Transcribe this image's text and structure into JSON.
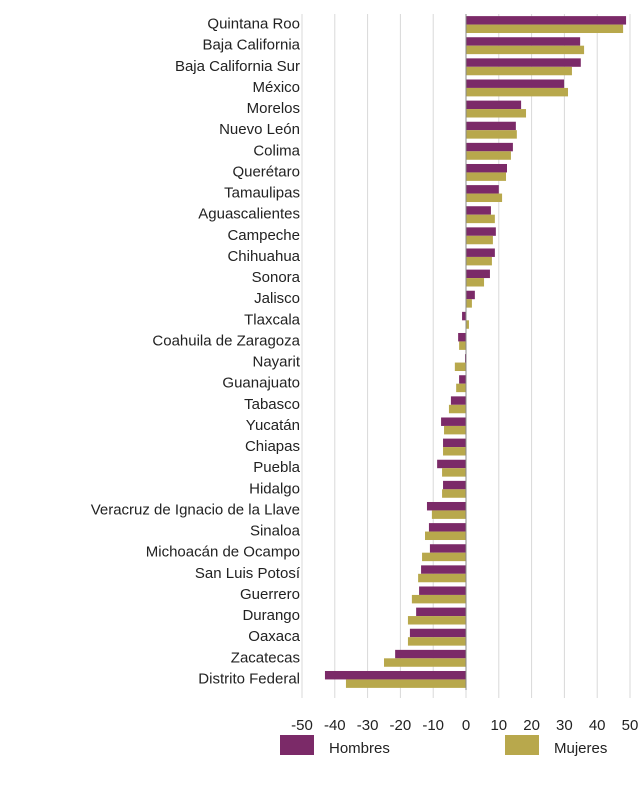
{
  "chart_data": {
    "type": "bar",
    "orientation": "horizontal",
    "categories": [
      "Quintana Roo",
      "Baja California",
      "Baja California Sur",
      "México",
      "Morelos",
      "Nuevo León",
      "Colima",
      "Querétaro",
      "Tamaulipas",
      "Aguascalientes",
      "Campeche",
      "Chihuahua",
      "Sonora",
      "Jalisco",
      "Tlaxcala",
      "Coahuila de Zaragoza",
      "Nayarit",
      "Guanajuato",
      "Tabasco",
      "Yucatán",
      "Chiapas",
      "Puebla",
      "Hidalgo",
      "Veracruz de Ignacio de la Llave",
      "Sinaloa",
      "Michoacán de Ocampo",
      "San Luis Potosí",
      "Guerrero",
      "Durango",
      "Oaxaca",
      "Zacatecas",
      "Distrito Federal"
    ],
    "series": [
      {
        "name": "Hombres",
        "color": "#7b2a68",
        "values": [
          48.8,
          34.8,
          35,
          29.9,
          16.8,
          15.2,
          14.3,
          12.5,
          10,
          7.6,
          9.1,
          8.8,
          7.3,
          2.7,
          -1.2,
          -2.4,
          -0.3,
          -2.1,
          -4.6,
          -7.6,
          -7,
          -8.8,
          -7,
          -11.9,
          -11.3,
          -11,
          -13.7,
          -14.3,
          -15.2,
          -17.1,
          -21.6,
          -43
        ]
      },
      {
        "name": "Mujeres",
        "color": "#b8a84c",
        "values": [
          47.9,
          36,
          32.3,
          31.1,
          18.3,
          15.5,
          13.7,
          12.2,
          11,
          8.8,
          8.2,
          7.9,
          5.5,
          1.8,
          0.9,
          -2.1,
          -3.4,
          -3,
          -5.2,
          -6.7,
          -7,
          -7.3,
          -7.3,
          -10.4,
          -12.5,
          -13.4,
          -14.6,
          -16.5,
          -17.7,
          -17.7,
          -25,
          -36.6
        ]
      }
    ],
    "xlim": [
      -50,
      50
    ],
    "xticks": [
      -50,
      -40,
      -30,
      -20,
      -10,
      0,
      10,
      20,
      30,
      40,
      50
    ],
    "grid": true
  }
}
